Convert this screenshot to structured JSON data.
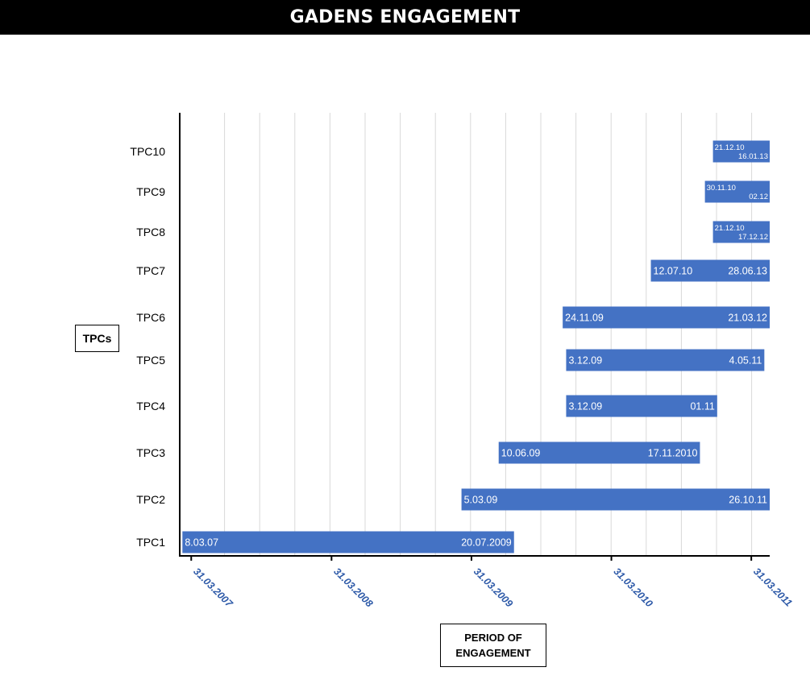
{
  "chart_data": {
    "type": "gantt",
    "title": "GADENS ENGAGEMENT",
    "xlabel": "PERIOD OF ENGAGEMENT",
    "ylabel": "TPCs",
    "x_ticks": [
      "31.03.2007",
      "31.03.2008",
      "31.03.2009",
      "31.03.2010",
      "31.03.2011"
    ],
    "x_range": [
      "2007-03-01",
      "2011-05-18"
    ],
    "grid": "vertical",
    "bar_color": "#4472c4",
    "tick_color": "#2e5aa8",
    "series": [
      {
        "name": "TPC1",
        "start": "2007-03-08",
        "end": "2009-07-20",
        "start_label": "8.03.07",
        "end_label": "20.07.2009"
      },
      {
        "name": "TPC2",
        "start": "2009-03-05",
        "end": "2011-10-26",
        "start_label": "5.03.09",
        "end_label": "26.10.11"
      },
      {
        "name": "TPC3",
        "start": "2009-06-10",
        "end": "2010-11-17",
        "start_label": "10.06.09",
        "end_label": "17.11.2010"
      },
      {
        "name": "TPC4",
        "start": "2009-12-03",
        "end": "2011-01-01",
        "start_label": "3.12.09",
        "end_label": "01.11"
      },
      {
        "name": "TPC5",
        "start": "2009-12-03",
        "end": "2011-05-04",
        "start_label": "3.12.09",
        "end_label": "4.05.11"
      },
      {
        "name": "TPC6",
        "start": "2009-11-24",
        "end": "2012-03-21",
        "start_label": "24.11.09",
        "end_label": "21.03.12"
      },
      {
        "name": "TPC7",
        "start": "2010-07-12",
        "end": "2013-06-28",
        "start_label": "12.07.10",
        "end_label": "28.06.13"
      },
      {
        "name": "TPC8",
        "start": "2010-12-21",
        "end": "2012-12-17",
        "start_label": "21.12.10",
        "end_label": "17.12.12"
      },
      {
        "name": "TPC9",
        "start": "2010-11-30",
        "end": "2012-02-01",
        "start_label": "30.11.10",
        "end_label": "02.12"
      },
      {
        "name": "TPC10",
        "start": "2010-12-21",
        "end": "2013-01-16",
        "start_label": "21.12.10",
        "end_label": "16.01.13"
      }
    ]
  }
}
